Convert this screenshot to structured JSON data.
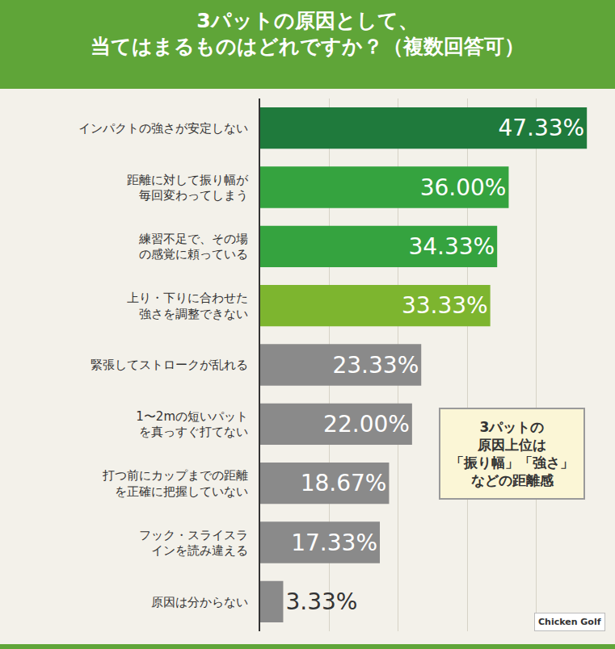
{
  "chart_data": {
    "type": "bar",
    "orientation": "horizontal",
    "title": "3パットの原因として、当てはまるものはどれですか？（複数回答可）",
    "categories": [
      "インパクトの強さが安定しない",
      "距離に対して振り幅が毎回変わってしまう",
      "練習不足で、その場の感覚に頼っている",
      "上り・下りに合わせた強さを調整できない",
      "緊張してストロークが乱れる",
      "1〜2mの短いパットを真っすぐ打てない",
      "打つ前にカップまでの距離を正確に把握していない",
      "フック・スライスラインを読み違える",
      "原因は分からない"
    ],
    "values": [
      47.33,
      36.0,
      34.33,
      33.33,
      23.33,
      22.0,
      18.67,
      17.33,
      3.33
    ],
    "value_labels": [
      "47.33%",
      "36.00%",
      "34.33%",
      "33.33%",
      "23.33%",
      "22.00%",
      "18.67%",
      "17.33%",
      "3.33%"
    ],
    "colors": [
      "#1f7a3c",
      "#35a33f",
      "#35a33f",
      "#7db52f",
      "#8a8a8a",
      "#8a8a8a",
      "#8a8a8a",
      "#8a8a8a",
      "#8a8a8a"
    ],
    "xlim": [
      0,
      50
    ],
    "xticks": [
      0,
      10,
      20,
      30,
      40,
      50
    ],
    "grid": true,
    "tick_labels": "y",
    "data_labels": true,
    "annotation": [
      "3パットの",
      "原因上位は",
      "「振り幅」「強さ」",
      "などの距離感"
    ],
    "logo": "Chicken Golf"
  }
}
